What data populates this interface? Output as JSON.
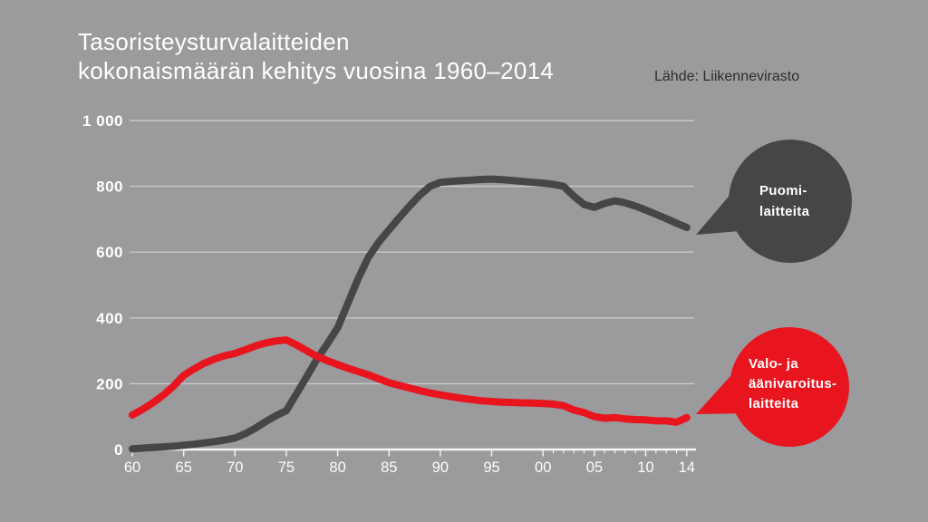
{
  "title": {
    "line1": "Tasoristeysturvalaitteiden",
    "line2": "kokonaismäärän kehitys vuosina 1960–2014"
  },
  "source": "Lähde: Liikennevirasto",
  "colors": {
    "background": "#9b9a9c",
    "grid": "#c9c8ca",
    "axis": "#f5f4f6",
    "tick_label": "#fdfdfd",
    "y_label": "#ffffff",
    "title_text": "#ffffff",
    "source_text": "#2e2e30",
    "puomi": "#464648",
    "valo": "#e8141e",
    "bubble_text": "#ffffff"
  },
  "callouts": [
    {
      "id": "puomi",
      "lines": [
        "Puomi-",
        "laitteita"
      ]
    },
    {
      "id": "valo",
      "lines": [
        "Valo- ja",
        "äänivaroitus-",
        "laitteita"
      ]
    }
  ],
  "chart_data": {
    "type": "line",
    "title": "Tasoristeysturvalaitteiden kokonaismäärän kehitys vuosina 1960–2014",
    "source": "Lähde: Liikennevirasto",
    "xlabel": "",
    "ylabel": "",
    "ylim": [
      0,
      1000
    ],
    "grid": "horizontal",
    "legend_position": "right-callout-bubbles",
    "yticks": [
      0,
      200,
      400,
      600,
      800,
      1000
    ],
    "ytick_labels": [
      "0",
      "200",
      "400",
      "600",
      "800",
      "1 000"
    ],
    "xticks": [
      {
        "year": 1960,
        "label": "60"
      },
      {
        "year": 1965,
        "label": "65"
      },
      {
        "year": 1970,
        "label": "70"
      },
      {
        "year": 1975,
        "label": "75"
      },
      {
        "year": 1980,
        "label": "80"
      },
      {
        "year": 1985,
        "label": "85"
      },
      {
        "year": 1990,
        "label": "90"
      },
      {
        "year": 1995,
        "label": "95"
      },
      {
        "year": 2000,
        "label": "00"
      },
      {
        "year": 2005,
        "label": "05"
      },
      {
        "year": 2010,
        "label": "10"
      },
      {
        "year": 2014,
        "label": "14"
      }
    ],
    "minor_tick_years": [
      2001,
      2002,
      2003,
      2004,
      2006,
      2007,
      2008,
      2009,
      2011,
      2012,
      2013
    ],
    "x": [
      1960,
      1961,
      1962,
      1963,
      1964,
      1965,
      1966,
      1967,
      1968,
      1969,
      1970,
      1971,
      1972,
      1973,
      1974,
      1975,
      1976,
      1977,
      1978,
      1979,
      1980,
      1981,
      1982,
      1983,
      1984,
      1985,
      1986,
      1987,
      1988,
      1989,
      1990,
      1991,
      1992,
      1993,
      1994,
      1995,
      1996,
      1997,
      1998,
      1999,
      2000,
      2001,
      2002,
      2003,
      2004,
      2005,
      2006,
      2007,
      2008,
      2009,
      2010,
      2011,
      2012,
      2013,
      2014
    ],
    "series": [
      {
        "id": "puomi",
        "name": "Puomilaitteita",
        "color": "#464648",
        "values": [
          2,
          4,
          6,
          8,
          10,
          13,
          16,
          20,
          24,
          29,
          35,
          48,
          65,
          85,
          103,
          118,
          170,
          222,
          275,
          322,
          370,
          445,
          520,
          585,
          630,
          668,
          705,
          740,
          773,
          800,
          812,
          815,
          817,
          819,
          821,
          822,
          820,
          818,
          815,
          812,
          810,
          806,
          800,
          770,
          745,
          736,
          748,
          756,
          750,
          740,
          728,
          715,
          702,
          688,
          675
        ]
      },
      {
        "id": "valo",
        "name": "Valo- ja äänivaroituslaitteita",
        "color": "#e8141e",
        "values": [
          105,
          122,
          142,
          165,
          192,
          225,
          245,
          262,
          275,
          285,
          292,
          303,
          315,
          324,
          330,
          333,
          318,
          300,
          283,
          270,
          258,
          247,
          237,
          227,
          215,
          203,
          195,
          187,
          179,
          172,
          166,
          161,
          156,
          152,
          148,
          146,
          144,
          143,
          142,
          141,
          140,
          138,
          133,
          120,
          112,
          100,
          95,
          97,
          93,
          91,
          90,
          87,
          87,
          83,
          97
        ]
      }
    ]
  }
}
